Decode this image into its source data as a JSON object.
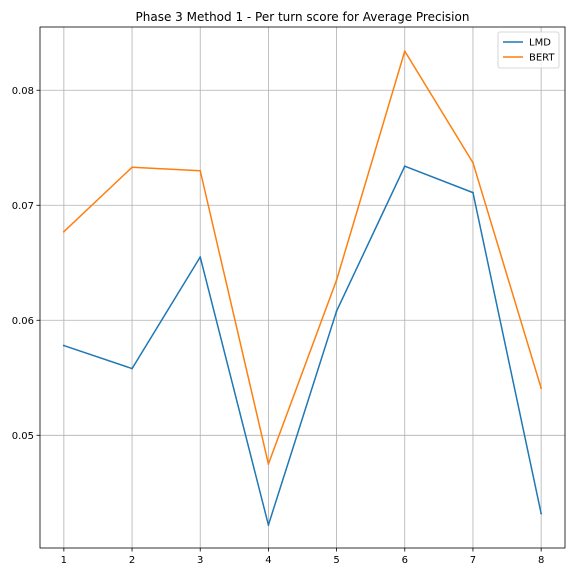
{
  "chart_data": {
    "type": "line",
    "title": "Phase 3 Method 1 - Per turn score for Average Precision",
    "xlabel": "",
    "ylabel": "",
    "x": [
      1,
      2,
      3,
      4,
      5,
      6,
      7,
      8
    ],
    "xticks": [
      "1",
      "2",
      "3",
      "4",
      "5",
      "6",
      "7",
      "8"
    ],
    "xlim": [
      0.65,
      8.35
    ],
    "yticks": [
      0.05,
      0.06,
      0.07,
      0.08
    ],
    "ytick_labels": [
      "0.05",
      "0.06",
      "0.07",
      "0.08"
    ],
    "ylim": [
      0.0402,
      0.0855
    ],
    "grid": true,
    "legend_position": "top-right",
    "series": [
      {
        "name": "LMD",
        "color": "#1f77b4",
        "values": [
          0.0578,
          0.0558,
          0.0655,
          0.0422,
          0.0608,
          0.0734,
          0.0711,
          0.0432
        ]
      },
      {
        "name": "BERT",
        "color": "#ff7f0e",
        "values": [
          0.0677,
          0.0733,
          0.073,
          0.0475,
          0.0635,
          0.0834,
          0.0737,
          0.0541
        ]
      }
    ]
  }
}
